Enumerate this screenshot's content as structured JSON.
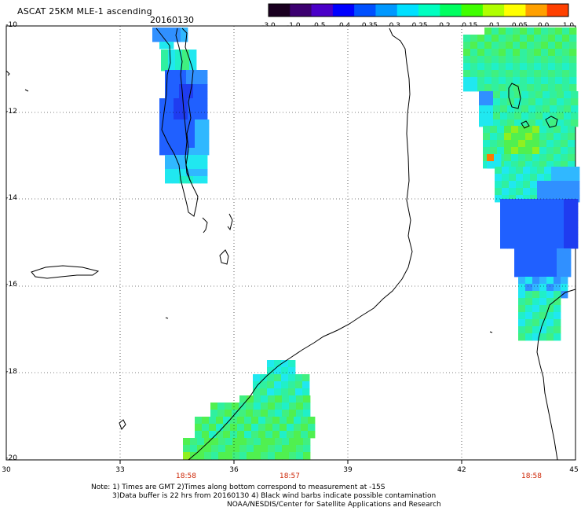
{
  "title": "ASCAT 25KM MLE-1 ascending",
  "date": "20160130",
  "colorbar": {
    "labels": [
      "-3.0",
      "-1.0",
      "-0.5",
      "-0.4",
      "-0.35",
      "-0.3",
      "-0.25",
      "-0.2",
      "-0.15",
      "-0.1",
      "-0.05",
      "0.0",
      "1.0"
    ],
    "colors": [
      "#1a0020",
      "#3c0070",
      "#4a00c8",
      "#0000ff",
      "#0050ff",
      "#0098ff",
      "#00e0ff",
      "#00ffc0",
      "#00ff60",
      "#40ff00",
      "#b0ff00",
      "#ffff00",
      "#ffa000",
      "#ff4000"
    ]
  },
  "lat_labels": [
    "-10",
    "-12",
    "-14",
    "-16",
    "-18",
    "-20"
  ],
  "lon_labels": [
    "30",
    "33",
    "36",
    "39",
    "42",
    "45"
  ],
  "pass_times": [
    "18:58",
    "18:57",
    "18:58"
  ],
  "notes": [
    "Note: 1) Times are GMT 2)Times along bottom correspond to measurement at -15S",
    "3)Data buffer is 22 hrs from 20160130 4) Black wind barbs indicate possible contamination",
    "NOAA/NESDIS/Center for Satellite Applications and Research"
  ],
  "swath_colors": {
    "deep_blue": "#1f3cf0",
    "blue": "#2060ff",
    "light_blue": "#3090ff",
    "sky": "#30b8ff",
    "cyan": "#20e8f0",
    "aqua": "#20f0c8",
    "teal_green": "#30f0a0",
    "mint": "#40f080",
    "green": "#50f050",
    "yellow_green": "#90f020",
    "orange": "#ff7a00"
  },
  "map_colors": {
    "coastline": "#000000",
    "grid": "#000000"
  }
}
